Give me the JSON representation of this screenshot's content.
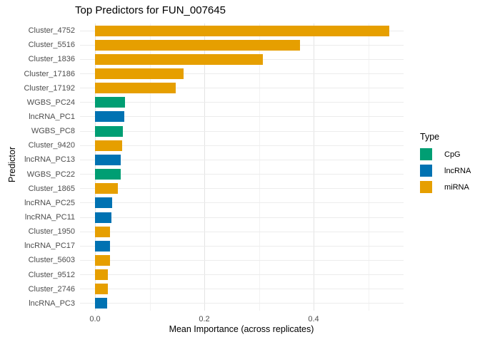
{
  "title": "Top Predictors for FUN_007645",
  "axes": {
    "x_title": "Mean Importance (across replicates)",
    "y_title": "Predictor",
    "x_tick_labels": [
      "0.0",
      "0.2",
      "0.4"
    ]
  },
  "legend": {
    "title": "Type",
    "items": [
      {
        "label": "CpG",
        "color": "#009E73"
      },
      {
        "label": "lncRNA",
        "color": "#0072B2"
      },
      {
        "label": "miRNA",
        "color": "#E69F00"
      }
    ]
  },
  "chart_data": {
    "type": "bar",
    "orientation": "horizontal",
    "title": "Top Predictors for FUN_007645",
    "xlabel": "Mean Importance (across replicates)",
    "ylabel": "Predictor",
    "xlim": [
      0,
      0.566
    ],
    "x_major_ticks": [
      0.0,
      0.2,
      0.4
    ],
    "x_minor_ticks": [
      0.1,
      0.3,
      0.5
    ],
    "grid": true,
    "legend_position": "right",
    "legend_title": "Type",
    "series_colors": {
      "CpG": "#009E73",
      "lncRNA": "#0072B2",
      "miRNA": "#E69F00"
    },
    "categories": [
      "Cluster_4752",
      "Cluster_5516",
      "Cluster_1836",
      "Cluster_17186",
      "Cluster_17192",
      "WGBS_PC24",
      "lncRNA_PC1",
      "WGBS_PC8",
      "Cluster_9420",
      "lncRNA_PC13",
      "WGBS_PC22",
      "Cluster_1865",
      "lncRNA_PC25",
      "lncRNA_PC11",
      "Cluster_1950",
      "lncRNA_PC17",
      "Cluster_5603",
      "Cluster_9512",
      "Cluster_2746",
      "lncRNA_PC3"
    ],
    "types": [
      "miRNA",
      "miRNA",
      "miRNA",
      "miRNA",
      "miRNA",
      "CpG",
      "lncRNA",
      "CpG",
      "miRNA",
      "lncRNA",
      "CpG",
      "miRNA",
      "lncRNA",
      "lncRNA",
      "miRNA",
      "lncRNA",
      "miRNA",
      "miRNA",
      "miRNA",
      "lncRNA"
    ],
    "values": [
      0.539,
      0.375,
      0.307,
      0.162,
      0.148,
      0.055,
      0.054,
      0.051,
      0.05,
      0.047,
      0.047,
      0.042,
      0.031,
      0.03,
      0.028,
      0.027,
      0.027,
      0.024,
      0.023,
      0.022
    ]
  }
}
